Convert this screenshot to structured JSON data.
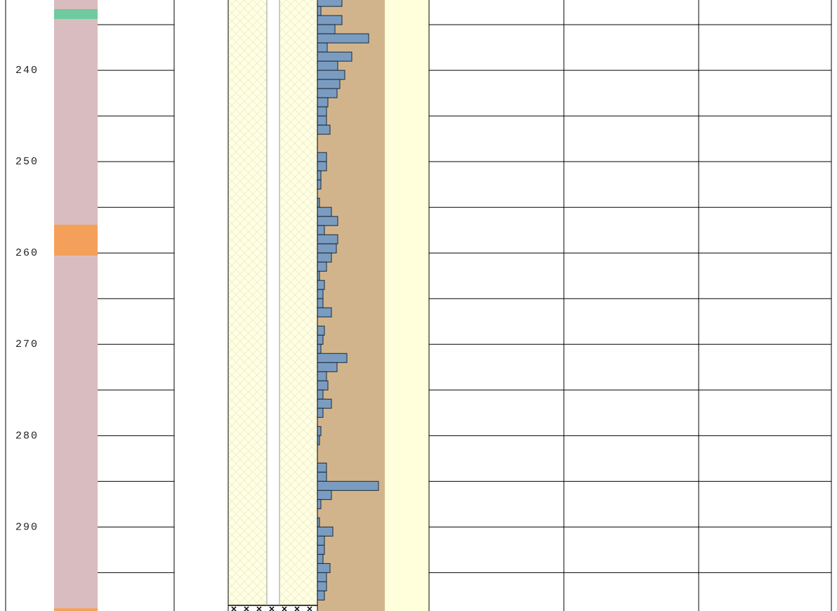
{
  "chart_data": {
    "type": "well-log",
    "ylim": [
      232.3,
      299.2
    ],
    "yticks": [
      240,
      250,
      260,
      270,
      280,
      290
    ],
    "grid_depths": [
      235,
      240,
      245,
      250,
      255,
      260,
      265,
      270,
      275,
      280,
      285,
      290,
      295
    ],
    "lithology": {
      "tops": [
        232.3,
        233.3,
        234.4,
        256.9,
        260.3,
        298.9
      ],
      "bottoms": [
        233.3,
        234.4,
        256.9,
        260.3,
        298.9,
        299.2
      ],
      "colors": [
        "#d9bcbf",
        "#6fcaa0",
        "#d9bcbf",
        "#f4a05a",
        "#d9bcbf",
        "#f4a05a"
      ]
    },
    "histogram": {
      "color": "#7a9cc0",
      "background": "#d2b48c",
      "xlim": [
        0,
        96
      ],
      "depths": [
        232,
        233,
        234,
        235,
        236,
        237,
        238,
        239,
        240,
        241,
        242,
        243,
        244,
        245,
        246,
        247,
        248,
        249,
        250,
        251,
        252,
        253,
        254,
        255,
        256,
        257,
        258,
        259,
        260,
        261,
        262,
        263,
        264,
        265,
        266,
        267,
        268,
        269,
        270,
        271,
        272,
        273,
        274,
        275,
        276,
        277,
        278,
        279,
        280,
        281,
        282,
        283,
        284,
        285,
        286,
        287,
        288,
        289,
        290,
        291,
        292,
        293,
        294,
        295,
        296,
        297
      ],
      "values": [
        35,
        5,
        35,
        25,
        73,
        14,
        49,
        29,
        39,
        32,
        28,
        15,
        13,
        13,
        18,
        0,
        0,
        13,
        13,
        5,
        5,
        0,
        3,
        20,
        29,
        10,
        29,
        27,
        20,
        13,
        3,
        10,
        8,
        8,
        20,
        0,
        10,
        8,
        5,
        42,
        28,
        13,
        15,
        8,
        20,
        8,
        0,
        5,
        3,
        0,
        0,
        13,
        13,
        87,
        20,
        5,
        0,
        3,
        22,
        10,
        10,
        8,
        18,
        13,
        13,
        10
      ]
    }
  }
}
